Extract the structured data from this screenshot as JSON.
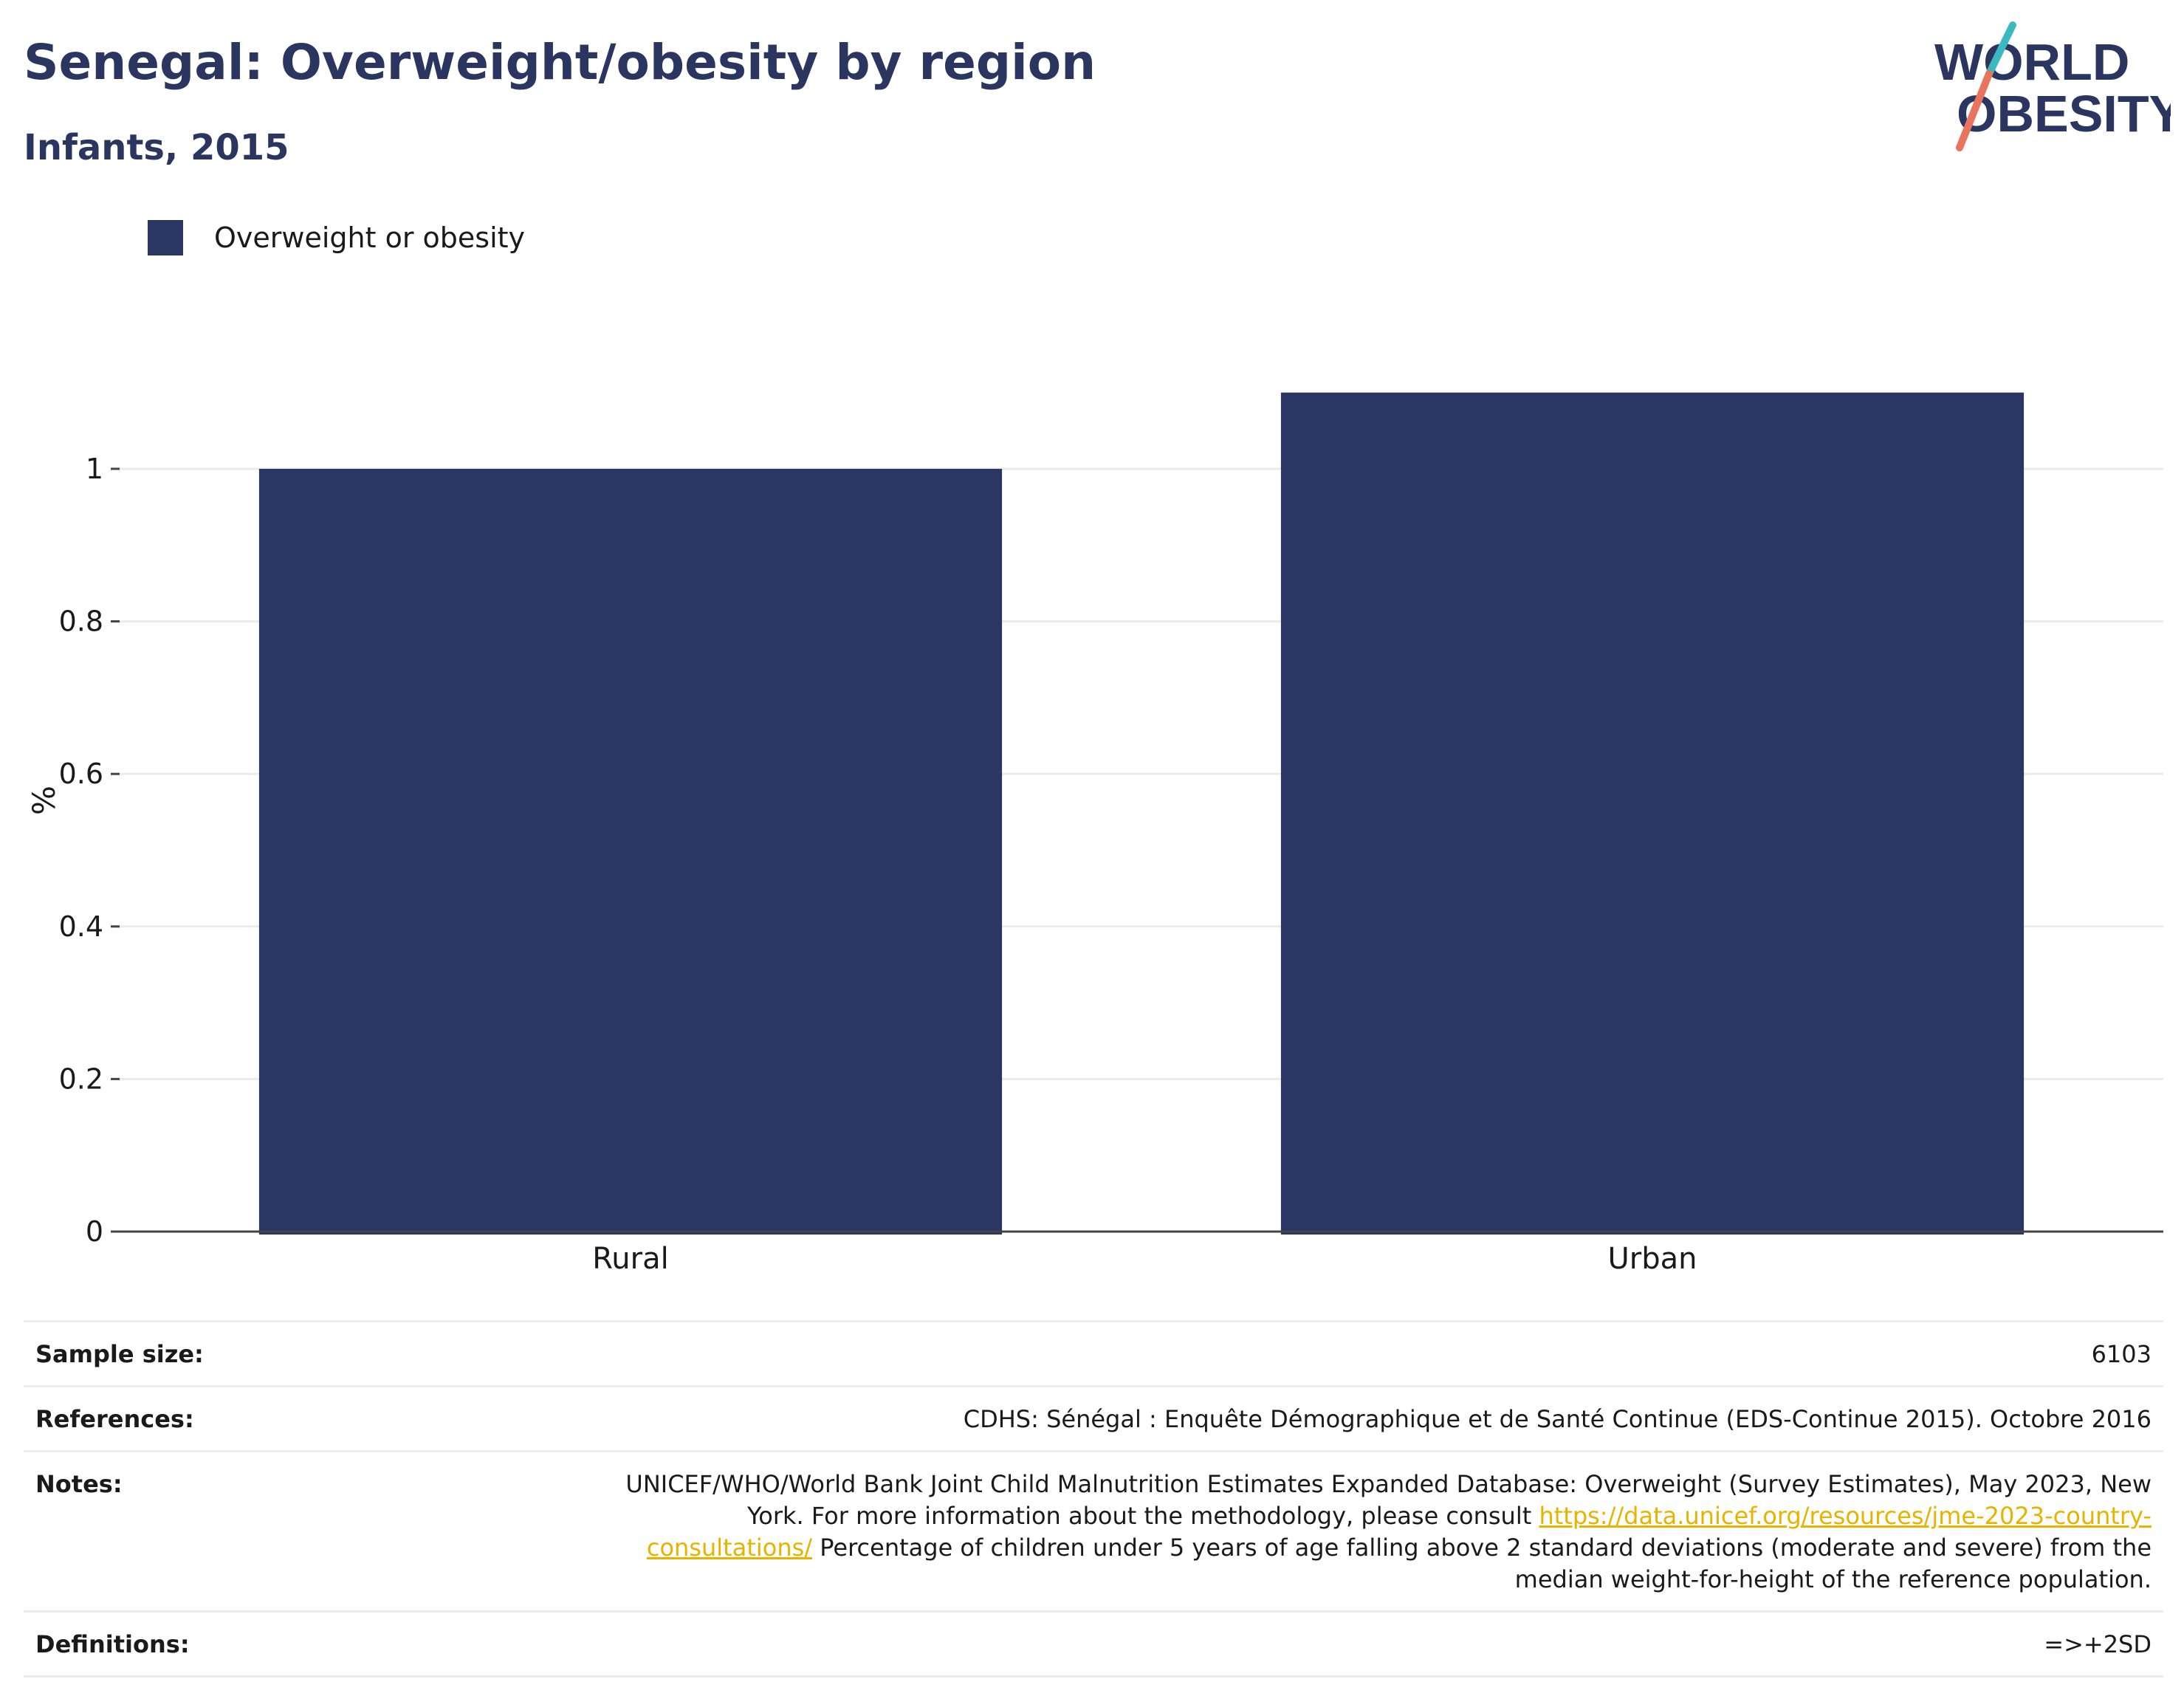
{
  "header": {
    "title": "Senegal: Overweight/obesity by region",
    "subtitle": "Infants, 2015"
  },
  "logo": {
    "line1": "WORLD",
    "line2": "OBESITY",
    "colors": {
      "text": "#2b3660",
      "slash_teal": "#3bb8c0",
      "slash_coral": "#e8735e"
    }
  },
  "chart_data": {
    "type": "bar",
    "categories": [
      "Rural",
      "Urban"
    ],
    "series": [
      {
        "name": "Overweight or obesity",
        "values": [
          1.0,
          1.1
        ],
        "color": "#2a3762"
      }
    ],
    "ylabel": "%",
    "xlabel": "",
    "ylim": [
      0,
      1.15
    ],
    "yticks": [
      0,
      0.2,
      0.4,
      0.6,
      0.8,
      1
    ],
    "ytick_labels": [
      "0",
      "0.2",
      "0.4",
      "0.6",
      "0.8",
      "1"
    ],
    "grid": true,
    "legend_position": "top-left"
  },
  "info": {
    "sample_size_label": "Sample size:",
    "sample_size_value": "6103",
    "references_label": "References:",
    "references_value": "CDHS: Sénégal : Enquête Démographique et de Santé Continue (EDS-Continue 2015). Octobre 2016",
    "notes_label": "Notes:",
    "notes_text_before": "UNICEF/WHO/World Bank Joint Child Malnutrition Estimates Expanded Database: Overweight (Survey Estimates), May 2023, New York. For more information about the methodology, please consult ",
    "notes_link": "https://data.unicef.org/resources/jme-2023-country-consultations/",
    "notes_text_after": " Percentage of children under 5 years of age falling above 2 standard deviations (moderate and severe) from the median weight-for-height of the reference population.",
    "definitions_label": "Definitions:",
    "definitions_value": "=>+2SD"
  }
}
